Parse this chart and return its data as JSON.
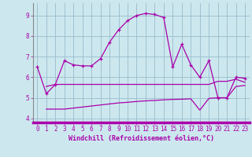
{
  "xlabel": "Windchill (Refroidissement éolien,°C)",
  "xlim": [
    -0.5,
    23.5
  ],
  "ylim": [
    3.8,
    9.6
  ],
  "yticks": [
    4,
    5,
    6,
    7,
    8,
    9
  ],
  "xticks": [
    0,
    1,
    2,
    3,
    4,
    5,
    6,
    7,
    8,
    9,
    10,
    11,
    12,
    13,
    14,
    15,
    16,
    17,
    18,
    19,
    20,
    21,
    22,
    23
  ],
  "background_color": "#cce8ee",
  "grid_color": "#99bbcc",
  "line_color": "#aa00aa",
  "line1_x": [
    0,
    1,
    2,
    3,
    4,
    5,
    6,
    7,
    8,
    9,
    10,
    11,
    12,
    13,
    14,
    15,
    16,
    17,
    18,
    19,
    20,
    21,
    22,
    23
  ],
  "line1_y": [
    6.5,
    5.2,
    5.65,
    6.8,
    6.6,
    6.55,
    6.55,
    6.9,
    7.7,
    8.3,
    8.75,
    9.0,
    9.1,
    9.05,
    8.9,
    6.5,
    7.6,
    6.6,
    6.0,
    6.8,
    5.0,
    5.0,
    6.0,
    5.95
  ],
  "line2_x": [
    1,
    2,
    3,
    4,
    5,
    6,
    7,
    8,
    9,
    10,
    11,
    12,
    13,
    14,
    15,
    16,
    17,
    18,
    19,
    20,
    21,
    22,
    23
  ],
  "line2_y": [
    5.55,
    5.65,
    5.65,
    5.65,
    5.65,
    5.65,
    5.65,
    5.65,
    5.65,
    5.65,
    5.65,
    5.65,
    5.65,
    5.65,
    5.65,
    5.65,
    5.65,
    5.65,
    5.65,
    5.8,
    5.8,
    5.9,
    5.75
  ],
  "line3_x": [
    1,
    2,
    3,
    4,
    5,
    6,
    7,
    8,
    9,
    10,
    11,
    12,
    13,
    14,
    15,
    16,
    17,
    18,
    19,
    20,
    21,
    22,
    23
  ],
  "line3_y": [
    4.45,
    4.45,
    4.45,
    4.5,
    4.55,
    4.6,
    4.65,
    4.7,
    4.75,
    4.78,
    4.82,
    4.85,
    4.87,
    4.9,
    4.92,
    4.93,
    4.95,
    4.4,
    4.97,
    5.0,
    5.0,
    5.55,
    5.6
  ]
}
